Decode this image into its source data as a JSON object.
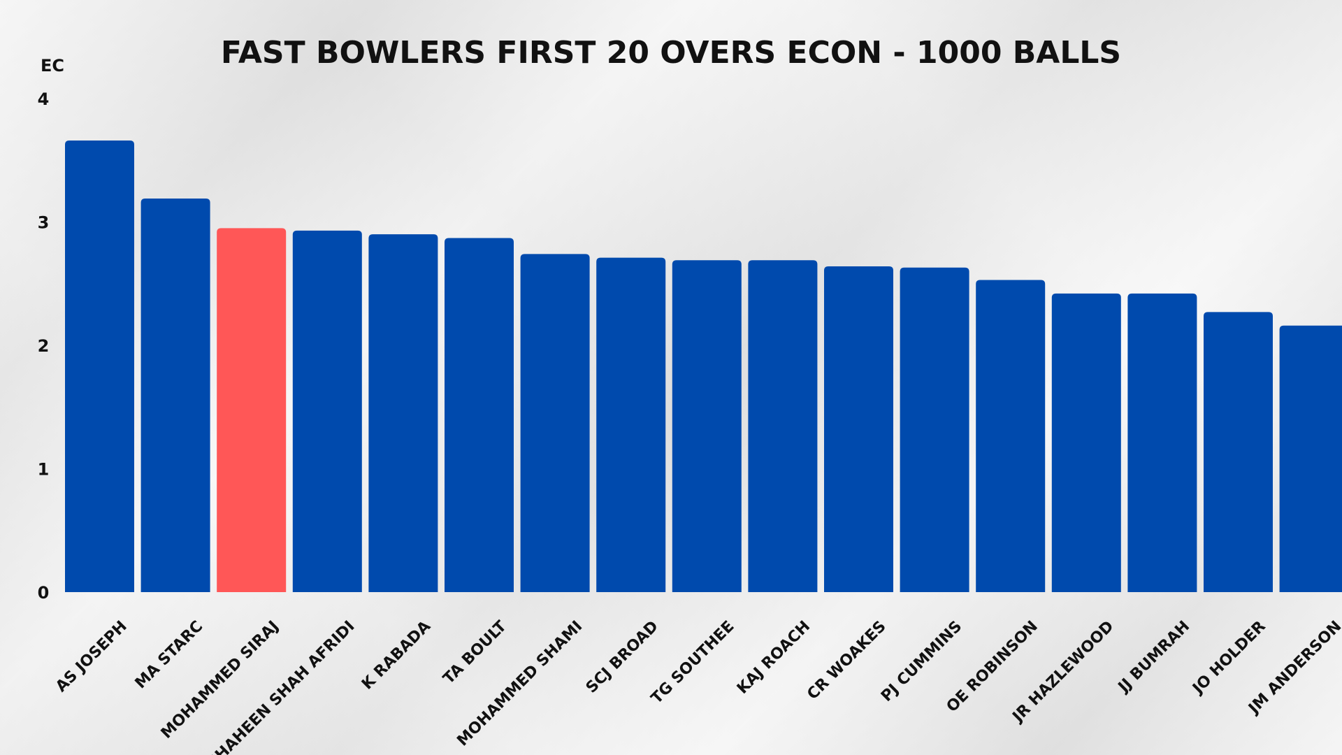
{
  "chart_data": {
    "type": "bar",
    "title": "FAST BOWLERS FIRST 20 OVERS ECON - 1000 BALLS",
    "ylabel": "EC",
    "xlabel": "",
    "ylim": [
      0,
      4
    ],
    "yticks": [
      0,
      1,
      2,
      3,
      4
    ],
    "grid": false,
    "categories": [
      "AS JOSEPH",
      "MA STARC",
      "MOHAMMED SIRAJ",
      "SHAHEEN SHAH AFRIDI",
      "K RABADA",
      "TA BOULT",
      "MOHAMMED SHAMI",
      "SCJ BROAD",
      "TG SOUTHEE",
      "KAJ ROACH",
      "CR WOAKES",
      "PJ CUMMINS",
      "OE ROBINSON",
      "JR HAZLEWOOD",
      "JJ BUMRAH",
      "JO HOLDER",
      "JM ANDERSON"
    ],
    "values": [
      3.66,
      3.19,
      2.95,
      2.93,
      2.9,
      2.87,
      2.74,
      2.71,
      2.69,
      2.69,
      2.64,
      2.63,
      2.53,
      2.42,
      2.42,
      2.27,
      2.16
    ],
    "colors": {
      "default": "#004AAD",
      "highlight": "#FF5757"
    },
    "highlight_index": 2
  }
}
